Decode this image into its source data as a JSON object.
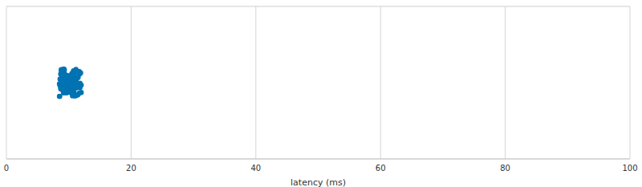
{
  "chart_data": {
    "type": "strip",
    "xlabel": "latency (ms)",
    "xlim": [
      0,
      100
    ],
    "xticks": [
      0,
      20,
      40,
      60,
      80,
      100
    ],
    "grid": true,
    "color": "#0173b2",
    "tick_labels": "x",
    "values": [
      8.5,
      8.6,
      8.7,
      8.8,
      8.9,
      9.0,
      9.1,
      9.2,
      9.3,
      9.4,
      9.5,
      9.6,
      9.7,
      9.8,
      9.9,
      10.0,
      10.1,
      10.2,
      10.3,
      10.4,
      10.5,
      10.6,
      10.7,
      10.8,
      10.9,
      11.0,
      11.1,
      11.2,
      11.3,
      11.4,
      11.5,
      11.6,
      11.7,
      11.8,
      11.9,
      12.0,
      8.55,
      8.65,
      8.75,
      8.85,
      8.95,
      9.05,
      9.15,
      9.25,
      9.35,
      9.45,
      9.55,
      9.65,
      9.75,
      9.85,
      9.95,
      10.05,
      10.15,
      10.25,
      10.35,
      10.45,
      10.55,
      10.65,
      10.75,
      10.85,
      10.95,
      11.05,
      11.15,
      11.25,
      11.35,
      11.45,
      11.55,
      11.65,
      11.75,
      11.85,
      8.6,
      8.9,
      9.2,
      9.6,
      9.9,
      10.2,
      10.5,
      10.8,
      11.1,
      11.4,
      11.7,
      8.8,
      9.4,
      10.0,
      10.6,
      11.2,
      11.8,
      9.1,
      9.7,
      10.3,
      10.9,
      11.5,
      8.7,
      9.3,
      9.9,
      10.5,
      11.1,
      11.6,
      12.0,
      8.5
    ]
  }
}
